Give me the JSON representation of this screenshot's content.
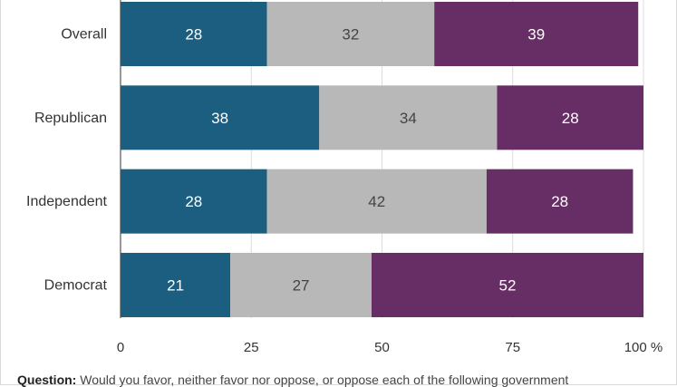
{
  "chart_data": {
    "type": "bar",
    "orientation": "horizontal",
    "stacked": true,
    "categories": [
      "Overall",
      "Republican",
      "Independent",
      "Democrat"
    ],
    "series": [
      {
        "values": [
          28,
          38,
          28,
          21
        ],
        "color": "#1b5e7f"
      },
      {
        "values": [
          32,
          34,
          42,
          27
        ],
        "color": "#b8b8b8"
      },
      {
        "values": [
          39,
          28,
          28,
          52
        ],
        "color": "#662e64"
      }
    ],
    "x_ticks": [
      "0",
      "25",
      "50",
      "75",
      "100 %"
    ],
    "xlim": [
      0,
      100
    ],
    "grid": true,
    "label_colors": {
      "0": "#ffffff",
      "1": "#444444",
      "2": "#ffffff"
    }
  },
  "footnote": {
    "label": "Question:",
    "text": "Would you favor, neither favor nor oppose, or oppose each of the following government"
  }
}
